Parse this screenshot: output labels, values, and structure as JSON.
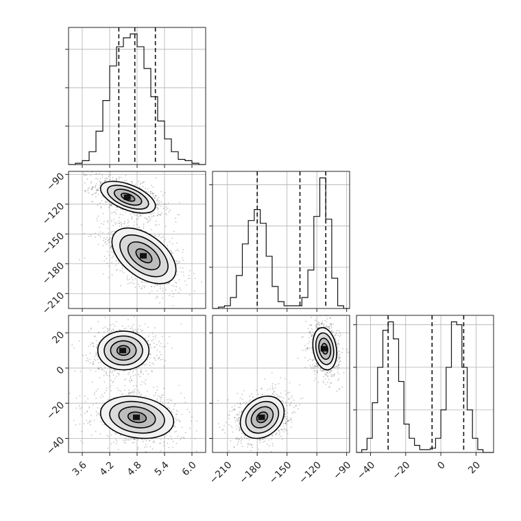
{
  "chart_data": {
    "type": "corner",
    "title": "",
    "grid": true,
    "parameters": [
      {
        "range": [
          3.3,
          6.3
        ],
        "ticks": [
          3.6,
          4.2,
          4.8,
          5.4,
          6.0
        ],
        "tick_labels": [
          "3.6",
          "4.2",
          "4.8",
          "5.4",
          "6.0"
        ]
      },
      {
        "range": [
          -225,
          -87
        ],
        "ticks": [
          -210,
          -180,
          -150,
          -120,
          -90
        ],
        "tick_labels": [
          "−210",
          "−180",
          "−150",
          "−120",
          "−90"
        ]
      },
      {
        "range": [
          -48,
          30
        ],
        "ticks": [
          -40,
          -20,
          0,
          20
        ],
        "tick_labels": [
          "−40",
          "−20",
          "0",
          "20"
        ]
      }
    ],
    "histograms": [
      {
        "param": 0,
        "bin_edges": [
          3.3,
          3.45,
          3.6,
          3.75,
          3.9,
          4.05,
          4.2,
          4.35,
          4.5,
          4.65,
          4.8,
          4.95,
          5.1,
          5.25,
          5.4,
          5.55,
          5.7,
          5.85,
          6.0,
          6.15,
          6.3
        ],
        "values": [
          0,
          0.01,
          0.03,
          0.1,
          0.26,
          0.5,
          0.77,
          0.92,
          0.99,
          1.02,
          0.92,
          0.75,
          0.53,
          0.34,
          0.2,
          0.1,
          0.04,
          0.03,
          0.01,
          0
        ],
        "quantiles": [
          4.4,
          4.75,
          5.2
        ]
      },
      {
        "param": 1,
        "bin_edges": [
          -225,
          -219,
          -213,
          -207,
          -201,
          -195,
          -189,
          -183,
          -177,
          -171,
          -165,
          -159,
          -153,
          -147,
          -141,
          -135,
          -129,
          -123,
          -117,
          -111,
          -105,
          -99,
          -93,
          -87
        ],
        "values": [
          0,
          0.01,
          0.02,
          0.08,
          0.24,
          0.47,
          0.64,
          0.72,
          0.62,
          0.38,
          0.16,
          0.05,
          0.02,
          0.02,
          0.02,
          0.08,
          0.28,
          0.67,
          0.95,
          0.65,
          0.22,
          0.02,
          0
        ],
        "quantiles": [
          -180,
          -137,
          -111
        ]
      },
      {
        "param": 2,
        "bin_edges": [
          -48,
          -45,
          -42,
          -39,
          -36,
          -33,
          -30,
          -27,
          -24,
          -21,
          -18,
          -15,
          -12,
          -9,
          -6,
          -3,
          0,
          3,
          6,
          9,
          12,
          15,
          18,
          21,
          24,
          27,
          30
        ],
        "values": [
          0,
          0.02,
          0.1,
          0.35,
          0.6,
          0.86,
          0.92,
          0.8,
          0.5,
          0.2,
          0.1,
          0.05,
          0.02,
          0.02,
          0.03,
          0.1,
          0.3,
          0.6,
          0.92,
          0.9,
          0.6,
          0.3,
          0.1,
          0.02,
          0,
          0
        ],
        "quantiles": [
          -30,
          -5,
          13
        ]
      }
    ],
    "pairs": [
      {
        "x_param": 0,
        "y_param": 1,
        "modes": [
          {
            "center": [
              4.6,
              -113
            ],
            "spread": [
              0.3,
              8
            ],
            "corr": -0.55,
            "weight": 0.5
          },
          {
            "center": [
              4.95,
              -172
            ],
            "spread": [
              0.35,
              14
            ],
            "corr": -0.5,
            "weight": 0.5
          }
        ]
      },
      {
        "x_param": 0,
        "y_param": 2,
        "modes": [
          {
            "center": [
              4.5,
              10
            ],
            "spread": [
              0.28,
              5.5
            ],
            "corr": 0.0,
            "weight": 0.5
          },
          {
            "center": [
              4.8,
              -28
            ],
            "spread": [
              0.4,
              6
            ],
            "corr": -0.2,
            "weight": 0.5
          }
        ]
      },
      {
        "x_param": 1,
        "y_param": 2,
        "modes": [
          {
            "center": [
              -112,
              11
            ],
            "spread": [
              6,
              6
            ],
            "corr": -0.2,
            "weight": 0.5
          },
          {
            "center": [
              -175,
              -28
            ],
            "spread": [
              11,
              6
            ],
            "corr": 0.25,
            "weight": 0.5
          }
        ]
      }
    ],
    "contour_levels": [
      0.5,
      1.0,
      1.5,
      2.0
    ]
  }
}
